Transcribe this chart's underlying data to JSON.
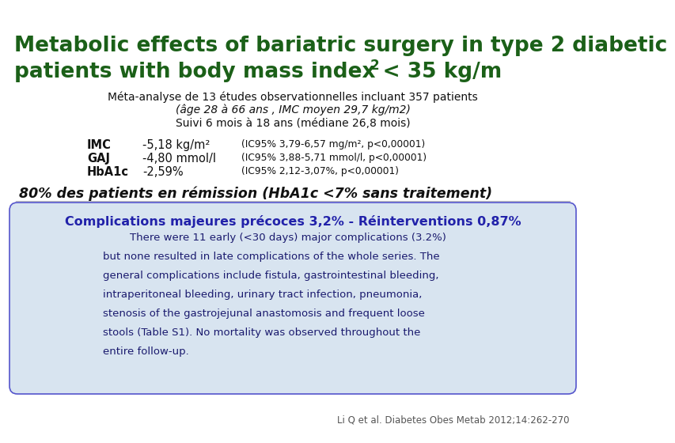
{
  "bg_color": "#ffffff",
  "title_line1": "Metabolic effects of bariatric surgery in type 2 diabetic",
  "title_line2": "patients with body mass index < 35 kg/m",
  "title_sup": "2",
  "title_color": "#1b6018",
  "subtitle1": "Méta-analyse de 13 études observationnelles incluant 357 patients",
  "subtitle2": "(âge 28 à 66 ans , IMC moyen 29,7 kg/m2)",
  "subtitle3": "Suivi 6 mois à 18 ans (médiane 26,8 mois)",
  "row1_label": "IMC",
  "row1_val": "-5,18 kg/m²",
  "row1_ci": "(IC95% 3,79-6,57 mg/m², p<0,00001)",
  "row2_label": "GAJ",
  "row2_val": "-4,80 mmol/l",
  "row2_ci": "(IC95% 3,88-5,71 mmol/l, p<0,00001)",
  "row3_label": "HbA1c",
  "row3_val": "-2,59%",
  "row3_ci": "(IC95% 2,12-3,07%, p<0,00001)",
  "remission_text": "80% des patients en rémission (HbA1c <7% sans traitement)",
  "box_title": "Complications majeures précoces 3,2% - Réinterventions 0,87%",
  "box_title_color": "#2222aa",
  "box_edge_color": "#5555cc",
  "box_bg_color": "#d8e4f0",
  "box_text_line1": "        There were 11 early (<30 days) major complications (3.2%)",
  "box_text_line2": "but none resulted in late complications of the whole series. The",
  "box_text_line3": "general complications include fistula, gastrointestinal bleeding,",
  "box_text_line4": "intraperitoneal bleeding, urinary tract infection, pneumonia,",
  "box_text_line5": "stenosis of the gastrojejunal anastomosis and frequent loose",
  "box_text_line6": "stools (Table S1). No mortality was observed throughout the",
  "box_text_line7": "entire follow-up.",
  "box_text_color": "#1a1a6e",
  "citation": "Li Q et al. Diabetes Obes Metab 2012;14:262-270",
  "citation_color": "#555555",
  "text_color_dark": "#111111"
}
